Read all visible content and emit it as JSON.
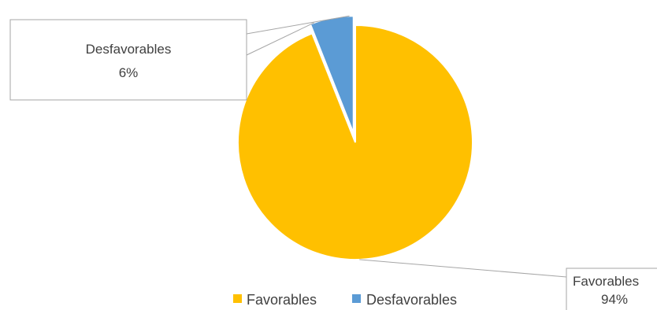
{
  "chart_data": {
    "type": "pie",
    "title": "",
    "categories": [
      "Favorables",
      "Desfavorables"
    ],
    "values": [
      94,
      6
    ],
    "value_labels": [
      "94%",
      "6%"
    ],
    "colors": [
      "#FFC000",
      "#5B9BD5"
    ],
    "exploded": [
      false,
      true
    ],
    "legend_position": "bottom",
    "data_labels": "callouts"
  }
}
